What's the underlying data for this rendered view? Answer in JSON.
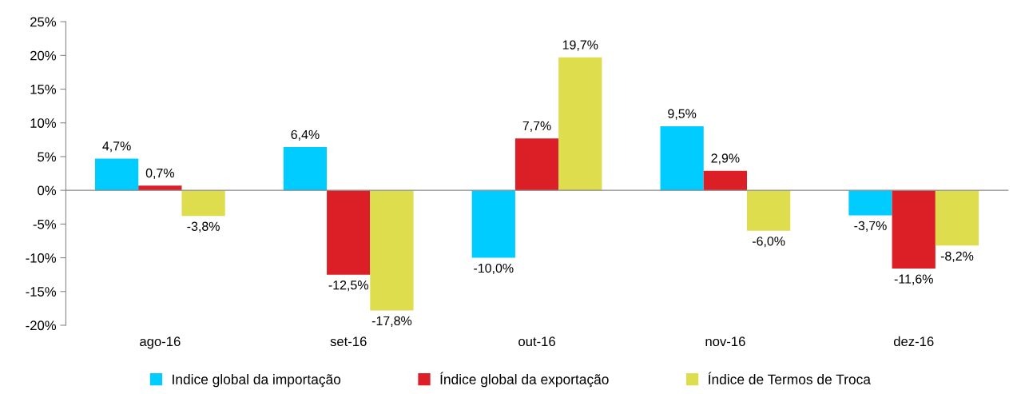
{
  "chart_data": {
    "type": "bar",
    "categories": [
      "ago-16",
      "set-16",
      "out-16",
      "nov-16",
      "dez-16"
    ],
    "series": [
      {
        "name": "Indice global da importação",
        "color": "#00ccff",
        "values": [
          4.7,
          6.4,
          -10.0,
          9.5,
          -3.7
        ],
        "value_labels": [
          "4,7%",
          "6,4%",
          "-10,0%",
          "9,5%",
          "-3,7%"
        ]
      },
      {
        "name": "Índice global da exportação",
        "color": "#dc1f26",
        "values": [
          0.7,
          -12.5,
          7.7,
          2.9,
          -11.6
        ],
        "value_labels": [
          "0,7%",
          "-12,5%",
          "7,7%",
          "2,9%",
          "-11,6%"
        ]
      },
      {
        "name": "Índice de Termos de Troca",
        "color": "#dddd4d",
        "values": [
          -3.8,
          -17.8,
          19.7,
          -6.0,
          -8.2
        ],
        "value_labels": [
          "-3,8%",
          "-17,8%",
          "19,7%",
          "-6,0%",
          "-8,2%"
        ]
      }
    ],
    "ylim": [
      -20,
      25
    ],
    "yticks": [
      {
        "value": -20,
        "label": "-20%"
      },
      {
        "value": -15,
        "label": "-15%"
      },
      {
        "value": -10,
        "label": "-10%"
      },
      {
        "value": -5,
        "label": "-5%"
      },
      {
        "value": 0,
        "label": "0%"
      },
      {
        "value": 5,
        "label": "5%"
      },
      {
        "value": 10,
        "label": "10%"
      },
      {
        "value": 15,
        "label": "15%"
      },
      {
        "value": 20,
        "label": "20%"
      },
      {
        "value": 25,
        "label": "25%"
      }
    ],
    "legend": "bottom"
  }
}
